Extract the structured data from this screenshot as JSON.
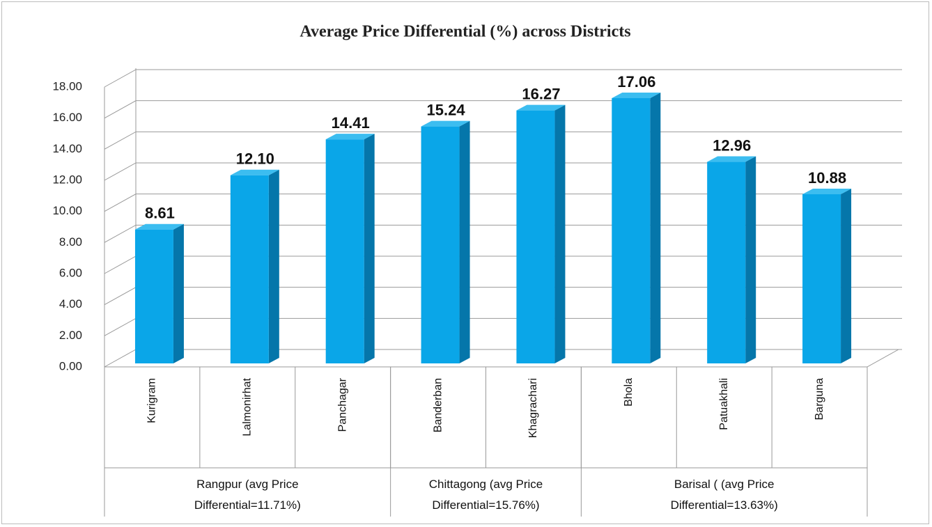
{
  "chart_data": {
    "type": "bar3d",
    "title": "Average Price Differential (%) across Districts",
    "groups": [
      {
        "name": "Rangpur (avg Price Differential=11.71%)",
        "categories": [
          "Kurigram",
          "Lalmonirhat",
          "Panchagar"
        ],
        "values": [
          8.61,
          12.1,
          14.41
        ],
        "value_labels": [
          "8.61",
          "12.10",
          "14.41"
        ]
      },
      {
        "name": "Chittagong (avg Price Differential=15.76%)",
        "categories": [
          "Banderban",
          "Khagrachari"
        ],
        "values": [
          15.24,
          16.27
        ],
        "value_labels": [
          "15.24",
          "16.27"
        ]
      },
      {
        "name": "Barisal ( (avg Price Differential=13.63%)",
        "categories": [
          "Bhola",
          "Patuakhali",
          "Barguna"
        ],
        "values": [
          17.06,
          12.96,
          10.88
        ],
        "value_labels": [
          "17.06",
          "12.96",
          "10.88"
        ]
      }
    ],
    "color": "#0aa6e8",
    "ylim": [
      0,
      18
    ],
    "yticks": [
      {
        "value": 0,
        "label": "0.00"
      },
      {
        "value": 2,
        "label": "2.00"
      },
      {
        "value": 4,
        "label": "4.00"
      },
      {
        "value": 6,
        "label": "6.00"
      },
      {
        "value": 8,
        "label": "8.00"
      },
      {
        "value": 10,
        "label": "10.00"
      },
      {
        "value": 12,
        "label": "12.00"
      },
      {
        "value": 14,
        "label": "14.00"
      },
      {
        "value": 16,
        "label": "16.00"
      },
      {
        "value": 18,
        "label": "18.00"
      }
    ],
    "grid": true
  }
}
